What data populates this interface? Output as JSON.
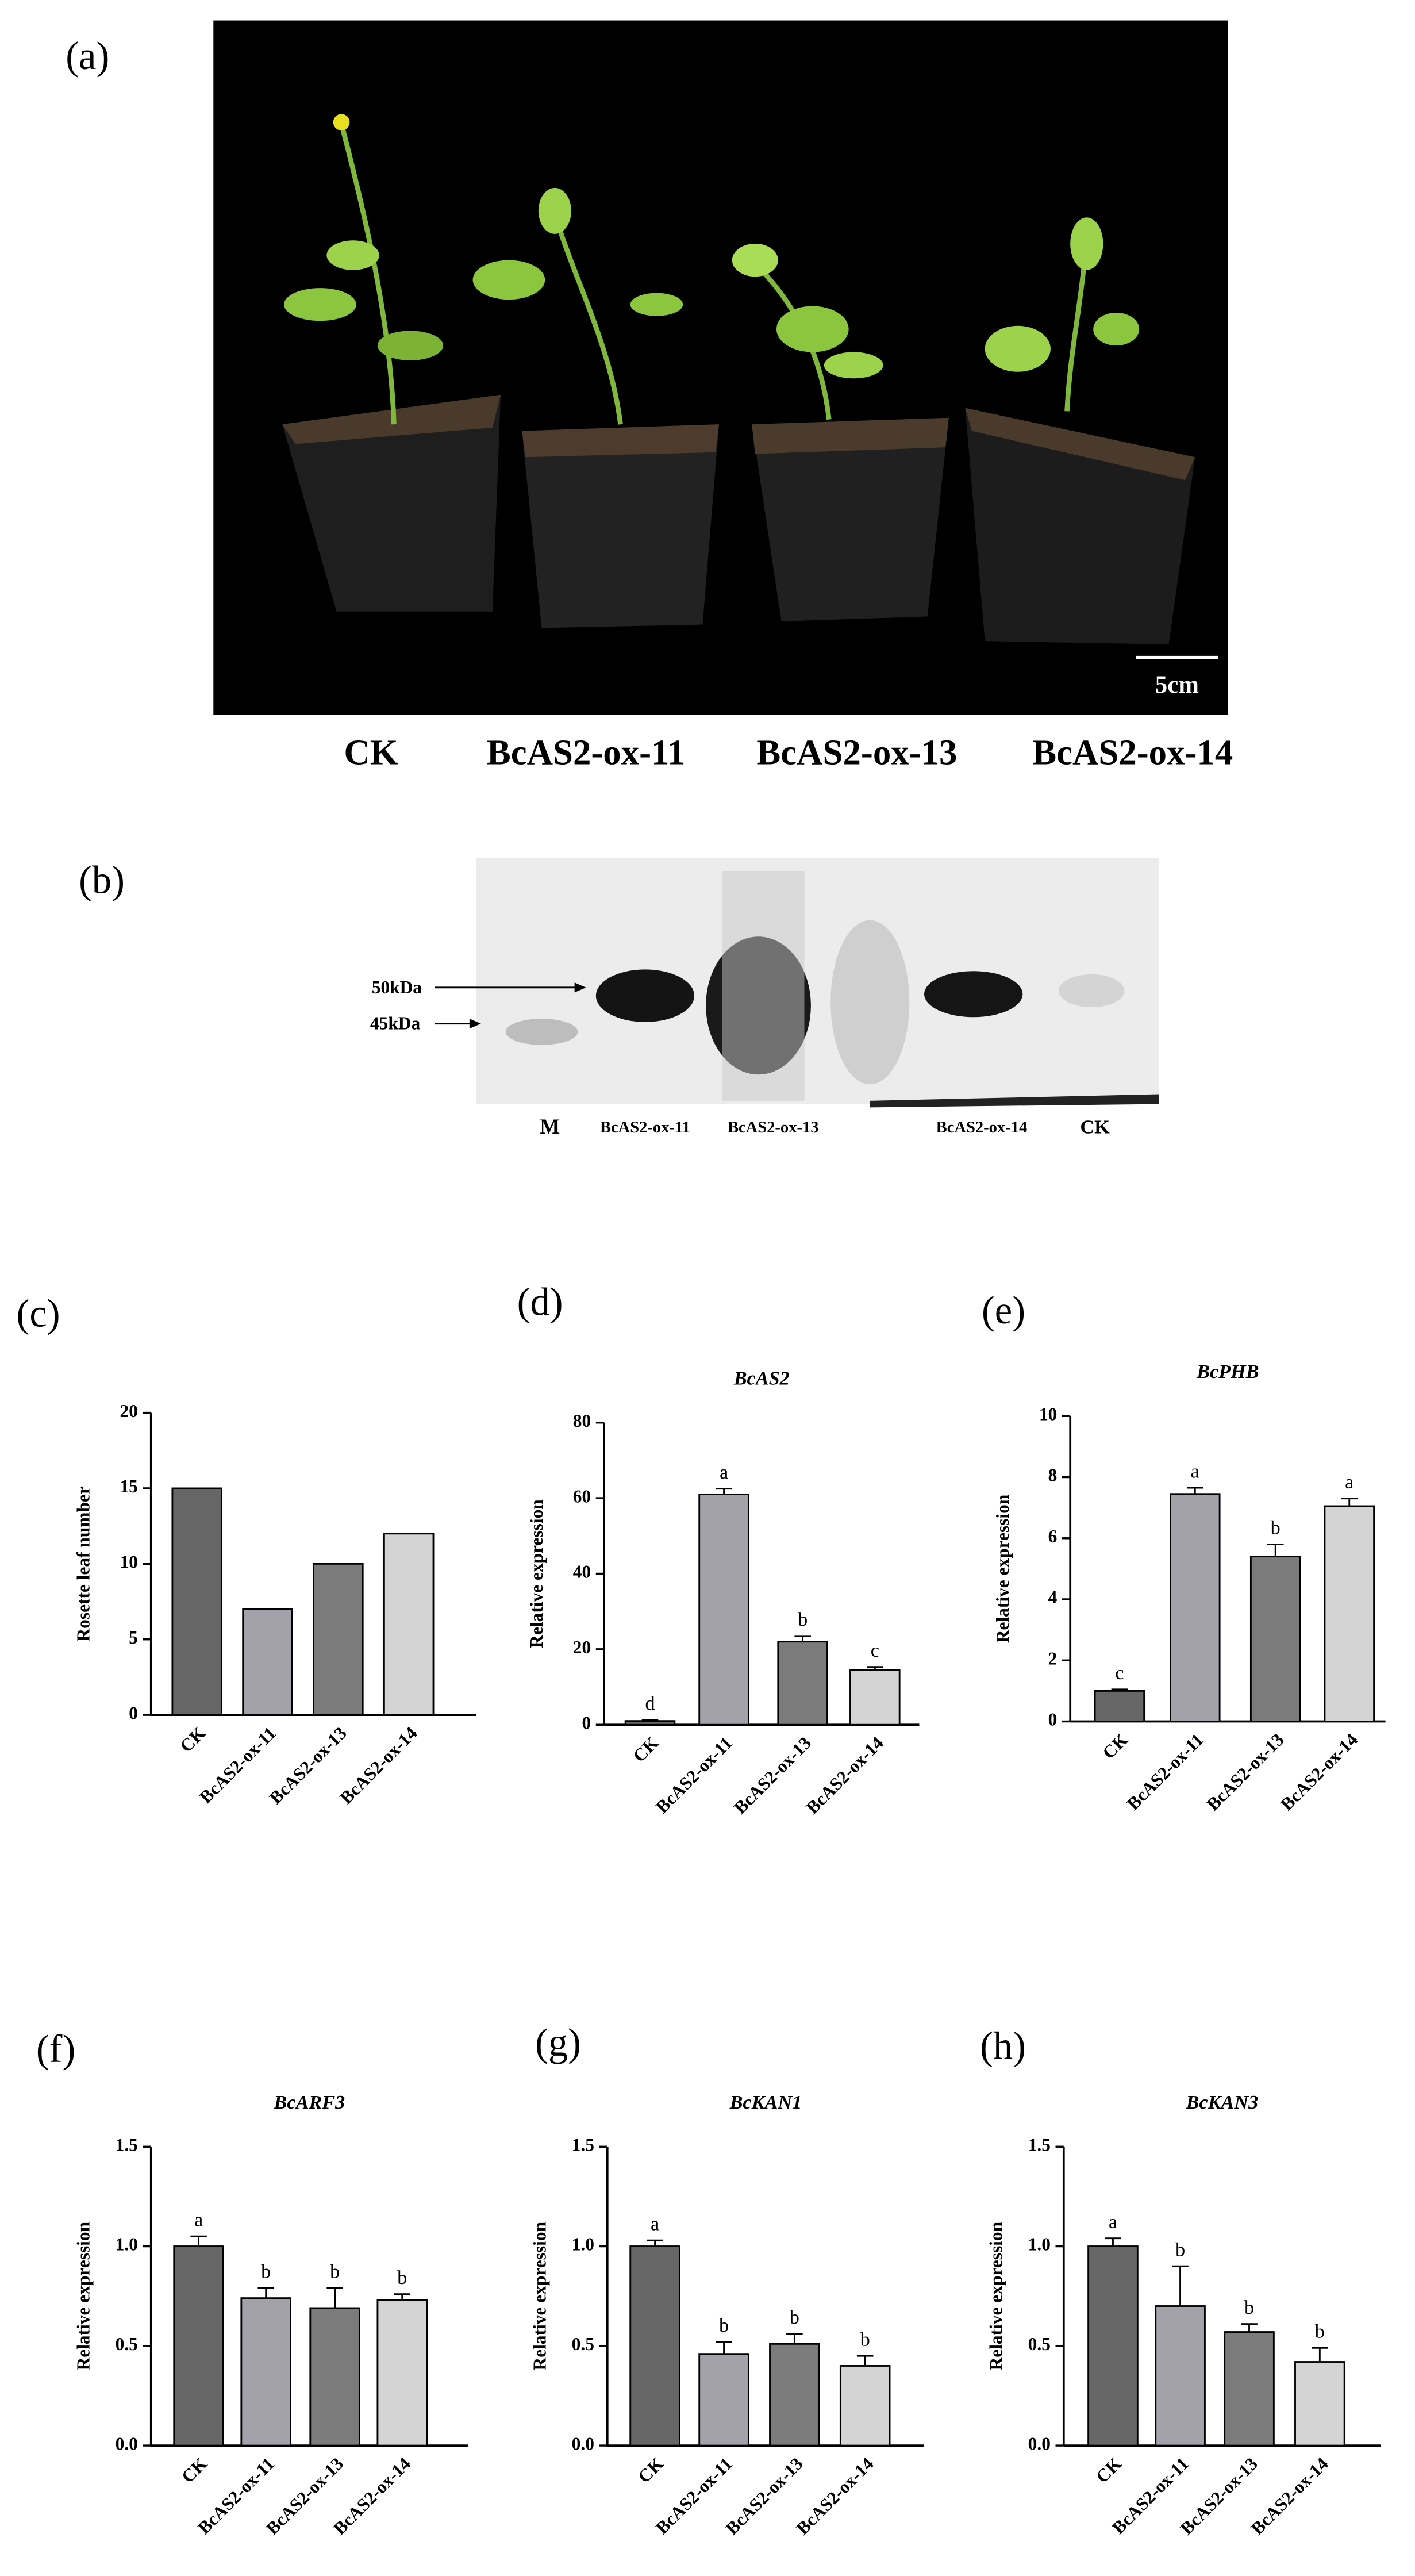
{
  "photo": {
    "label": "(a)",
    "scale_bar": "5cm",
    "captions": [
      "CK",
      "BcAS2-ox-11",
      "BcAS2-ox-13",
      "BcAS2-ox-14"
    ]
  },
  "blot": {
    "label": "(b)",
    "markers": [
      "50kDa",
      "45kDa"
    ],
    "lanes": [
      "M",
      "BcAS2-ox-11",
      "BcAS2-ox-13",
      "BcAS2-ox-14",
      "CK"
    ]
  },
  "chart_data": [
    {
      "type": "bar",
      "panel_label": "(c)",
      "y_label": "Rosette leaf number",
      "categories": [
        "CK",
        "BcAS2-ox-11",
        "BcAS2-ox-13",
        "BcAS2-ox-14"
      ],
      "values": [
        15,
        7,
        10,
        12
      ],
      "colors": [
        "#666666",
        "#a3a2aa",
        "#7b7b7b",
        "#d4d4d4"
      ],
      "ylim": [
        0,
        20
      ],
      "yticks": [
        0,
        5,
        10,
        15,
        20
      ]
    },
    {
      "type": "bar",
      "panel_label": "(d)",
      "title": "BcAS2",
      "y_label": "Relative expression",
      "categories": [
        "CK",
        "BcAS2-ox-11",
        "BcAS2-ox-13",
        "BcAS2-ox-14"
      ],
      "values": [
        1,
        61,
        22,
        14.5
      ],
      "errors": [
        0.3,
        1.5,
        1.5,
        0.8
      ],
      "significance": [
        "d",
        "a",
        "b",
        "c"
      ],
      "colors": [
        "#666666",
        "#a3a2aa",
        "#7b7b7b",
        "#d4d4d4"
      ],
      "ylim": [
        0,
        80
      ],
      "yticks": [
        0,
        20,
        40,
        60,
        80
      ]
    },
    {
      "type": "bar",
      "panel_label": "(e)",
      "title": "BcPHB",
      "y_label": "Relative expression",
      "categories": [
        "CK",
        "BcAS2-ox-11",
        "BcAS2-ox-13",
        "BcAS2-ox-14"
      ],
      "values": [
        1,
        7.45,
        5.4,
        7.05
      ],
      "errors": [
        0.05,
        0.2,
        0.4,
        0.25
      ],
      "significance": [
        "c",
        "a",
        "b",
        "a"
      ],
      "colors": [
        "#666666",
        "#a3a2aa",
        "#7b7b7b",
        "#d4d4d4"
      ],
      "ylim": [
        0,
        10
      ],
      "yticks": [
        0,
        2,
        4,
        6,
        8,
        10
      ]
    },
    {
      "type": "bar",
      "panel_label": "(f)",
      "title": "BcARF3",
      "y_label": "Relative expression",
      "categories": [
        "CK",
        "BcAS2-ox-11",
        "BcAS2-ox-13",
        "BcAS2-ox-14"
      ],
      "values": [
        1.0,
        0.74,
        0.69,
        0.73
      ],
      "errors": [
        0.05,
        0.05,
        0.1,
        0.03
      ],
      "significance": [
        "a",
        "b",
        "b",
        "b"
      ],
      "colors": [
        "#666666",
        "#a3a2aa",
        "#7b7b7b",
        "#d4d4d4"
      ],
      "ylim": [
        0,
        1.5
      ],
      "yticks": [
        {
          "value": 0,
          "label": "0.0"
        },
        0.5,
        {
          "value": 1,
          "label": "1.0"
        },
        1.5
      ]
    },
    {
      "type": "bar",
      "panel_label": "(g)",
      "title": "BcKAN1",
      "y_label": "Relative expression",
      "categories": [
        "CK",
        "BcAS2-ox-11",
        "BcAS2-ox-13",
        "BcAS2-ox-14"
      ],
      "values": [
        1.0,
        0.46,
        0.51,
        0.4
      ],
      "errors": [
        0.03,
        0.06,
        0.05,
        0.05
      ],
      "significance": [
        "a",
        "b",
        "b",
        "b"
      ],
      "colors": [
        "#666666",
        "#a3a2aa",
        "#7b7b7b",
        "#d4d4d4"
      ],
      "ylim": [
        0,
        1.5
      ],
      "yticks": [
        {
          "value": 0,
          "label": "0.0"
        },
        0.5,
        {
          "value": 1,
          "label": "1.0"
        },
        1.5
      ]
    },
    {
      "type": "bar",
      "panel_label": "(h)",
      "title": "BcKAN3",
      "y_label": "Relative expression",
      "categories": [
        "CK",
        "BcAS2-ox-11",
        "BcAS2-ox-13",
        "BcAS2-ox-14"
      ],
      "values": [
        1.0,
        0.7,
        0.57,
        0.42
      ],
      "errors": [
        0.04,
        0.2,
        0.04,
        0.07
      ],
      "significance": [
        "a",
        "b",
        "b",
        "b"
      ],
      "colors": [
        "#666666",
        "#a3a2aa",
        "#7b7b7b",
        "#d4d4d4"
      ],
      "ylim": [
        0,
        1.5
      ],
      "yticks": [
        {
          "value": 0,
          "label": "0.0"
        },
        0.5,
        {
          "value": 1,
          "label": "1.0"
        },
        1.5
      ]
    }
  ]
}
